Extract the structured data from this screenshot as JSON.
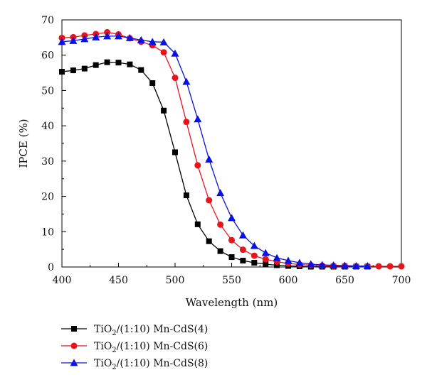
{
  "chart_data": {
    "type": "line",
    "xlabel": "Wavelength (nm)",
    "ylabel": "IPCE (%)",
    "xlim": [
      400,
      700
    ],
    "ylim": [
      0,
      70
    ],
    "xticks": [
      "400",
      "450",
      "500",
      "550",
      "600",
      "650",
      "700"
    ],
    "yticks": [
      "0",
      "10",
      "20",
      "30",
      "40",
      "50",
      "60",
      "70"
    ],
    "grid": false,
    "legend_position": "bottom",
    "series": [
      {
        "name": "TiO2/(1:10) Mn-CdS(4)",
        "legend": {
          "pre": "TiO",
          "sub": "2",
          "post": "/(1:10) Mn-CdS(4)"
        },
        "color": "#000000",
        "marker": "square",
        "x": [
          400,
          410,
          420,
          430,
          440,
          450,
          460,
          470,
          480,
          490,
          500,
          510,
          520,
          530,
          540,
          550,
          560,
          570,
          580,
          590,
          600,
          610,
          620,
          630,
          640,
          650,
          660,
          670
        ],
        "y": [
          55.3,
          55.7,
          56.2,
          57.2,
          58.0,
          57.9,
          57.4,
          55.8,
          52.1,
          44.3,
          32.5,
          20.3,
          12.1,
          7.3,
          4.5,
          2.8,
          1.8,
          1.2,
          0.8,
          0.5,
          0.3,
          0.2,
          0.1,
          0.1,
          0.1,
          0.1,
          0.1,
          0.1
        ]
      },
      {
        "name": "TiO2/(1:10) Mn-CdS(6)",
        "legend": {
          "pre": "TiO",
          "sub": "2",
          "post": "/(1:10) Mn-CdS(6)"
        },
        "color": "#e8141c",
        "marker": "circle",
        "x": [
          400,
          410,
          420,
          430,
          440,
          450,
          460,
          470,
          480,
          490,
          500,
          510,
          520,
          530,
          540,
          550,
          560,
          570,
          580,
          590,
          600,
          610,
          620,
          630,
          640,
          650,
          660,
          670,
          680,
          690,
          700
        ],
        "y": [
          64.9,
          65.1,
          65.6,
          66.0,
          66.5,
          65.9,
          64.8,
          63.8,
          62.8,
          60.8,
          53.6,
          41.1,
          28.8,
          18.9,
          12.0,
          7.6,
          4.9,
          3.2,
          2.2,
          1.5,
          1.0,
          0.7,
          0.5,
          0.4,
          0.3,
          0.3,
          0.2,
          0.2,
          0.2,
          0.2,
          0.2
        ]
      },
      {
        "name": "TiO2/(1:10) Mn-CdS(8)",
        "legend": {
          "pre": "TiO",
          "sub": "2",
          "post": "/(1:10) Mn-CdS(8)"
        },
        "color": "#0a12e0",
        "marker": "triangle",
        "x": [
          400,
          410,
          420,
          430,
          440,
          450,
          460,
          470,
          480,
          490,
          500,
          510,
          520,
          530,
          540,
          550,
          560,
          570,
          580,
          590,
          600,
          610,
          620,
          630,
          640,
          650,
          660,
          670
        ],
        "y": [
          63.8,
          64.1,
          64.6,
          65.1,
          65.4,
          65.4,
          64.9,
          64.3,
          63.8,
          63.7,
          60.5,
          52.5,
          41.9,
          30.5,
          21.0,
          13.9,
          9.0,
          6.0,
          4.0,
          2.6,
          1.8,
          1.2,
          0.8,
          0.6,
          0.5,
          0.4,
          0.3,
          0.3
        ]
      }
    ]
  }
}
